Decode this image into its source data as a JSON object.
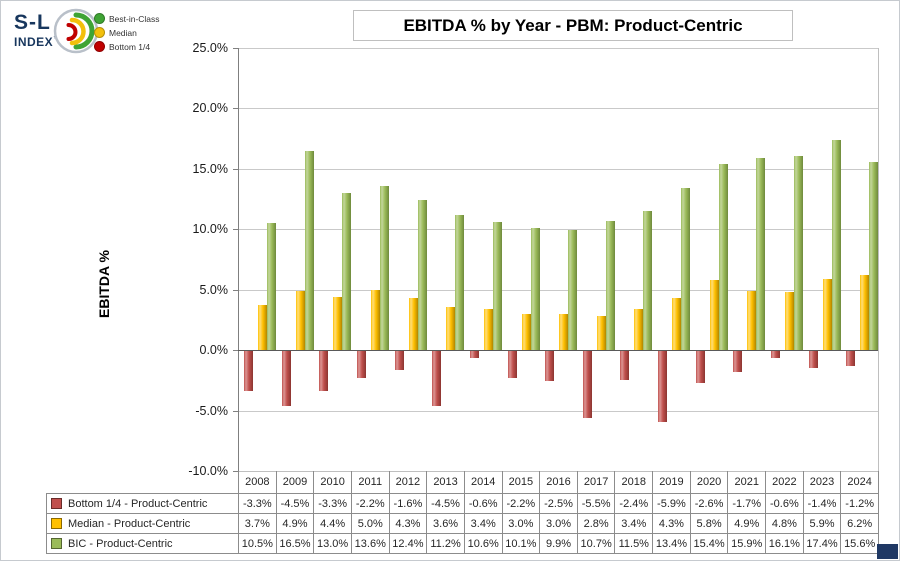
{
  "logo": {
    "top": "S-L",
    "bottom": "INDEX",
    "mark": "™"
  },
  "top_legend": {
    "items": [
      {
        "label": "Best-in-Class",
        "color": "#3fa435"
      },
      {
        "label": "Median",
        "color": "#f2c00c"
      },
      {
        "label": "Bottom 1/4",
        "color": "#c00000"
      }
    ]
  },
  "chart_data": {
    "type": "bar",
    "title": "EBITDA % by Year - PBM: Product-Centric",
    "xlabel": "",
    "ylabel": "EBITDA %",
    "ylim": [
      -10,
      25
    ],
    "ytick_step": 5,
    "ytick_labels": [
      "25.0%",
      "20.0%",
      "15.0%",
      "10.0%",
      "5.0%",
      "0.0%",
      "-5.0%",
      "-10.0%"
    ],
    "grid": "horizontal",
    "legend_position": "data-table-left",
    "value_suffix": "%",
    "categories": [
      "2008",
      "2009",
      "2010",
      "2011",
      "2012",
      "2013",
      "2014",
      "2015",
      "2016",
      "2017",
      "2018",
      "2019",
      "2020",
      "2021",
      "2022",
      "2023",
      "2024"
    ],
    "series": [
      {
        "name": "Bottom 1/4 - Product-Centric",
        "color": "#c0504d",
        "color_light": "#dc9694",
        "color_dark": "#8c3531",
        "values": [
          -3.3,
          -4.5,
          -3.3,
          -2.2,
          -1.6,
          -4.5,
          -0.6,
          -2.2,
          -2.5,
          -5.5,
          -2.4,
          -5.9,
          -2.6,
          -1.7,
          -0.6,
          -1.4,
          -1.2
        ]
      },
      {
        "name": "Median - Product-Centric",
        "color": "#ffc000",
        "color_light": "#ffde7a",
        "color_dark": "#b38600",
        "values": [
          3.7,
          4.9,
          4.4,
          5.0,
          4.3,
          3.6,
          3.4,
          3.0,
          3.0,
          2.8,
          3.4,
          4.3,
          5.8,
          4.9,
          4.8,
          5.9,
          6.2
        ]
      },
      {
        "name": "BIC - Product-Centric",
        "color": "#9bbb59",
        "color_light": "#c3d69b",
        "color_dark": "#6f8a3c",
        "values": [
          10.5,
          16.5,
          13.0,
          13.6,
          12.4,
          11.2,
          10.6,
          10.1,
          9.9,
          10.7,
          11.5,
          13.4,
          15.4,
          15.9,
          16.1,
          17.4,
          15.6
        ]
      }
    ]
  },
  "footer": {
    "corner_color": "#1f3864"
  }
}
